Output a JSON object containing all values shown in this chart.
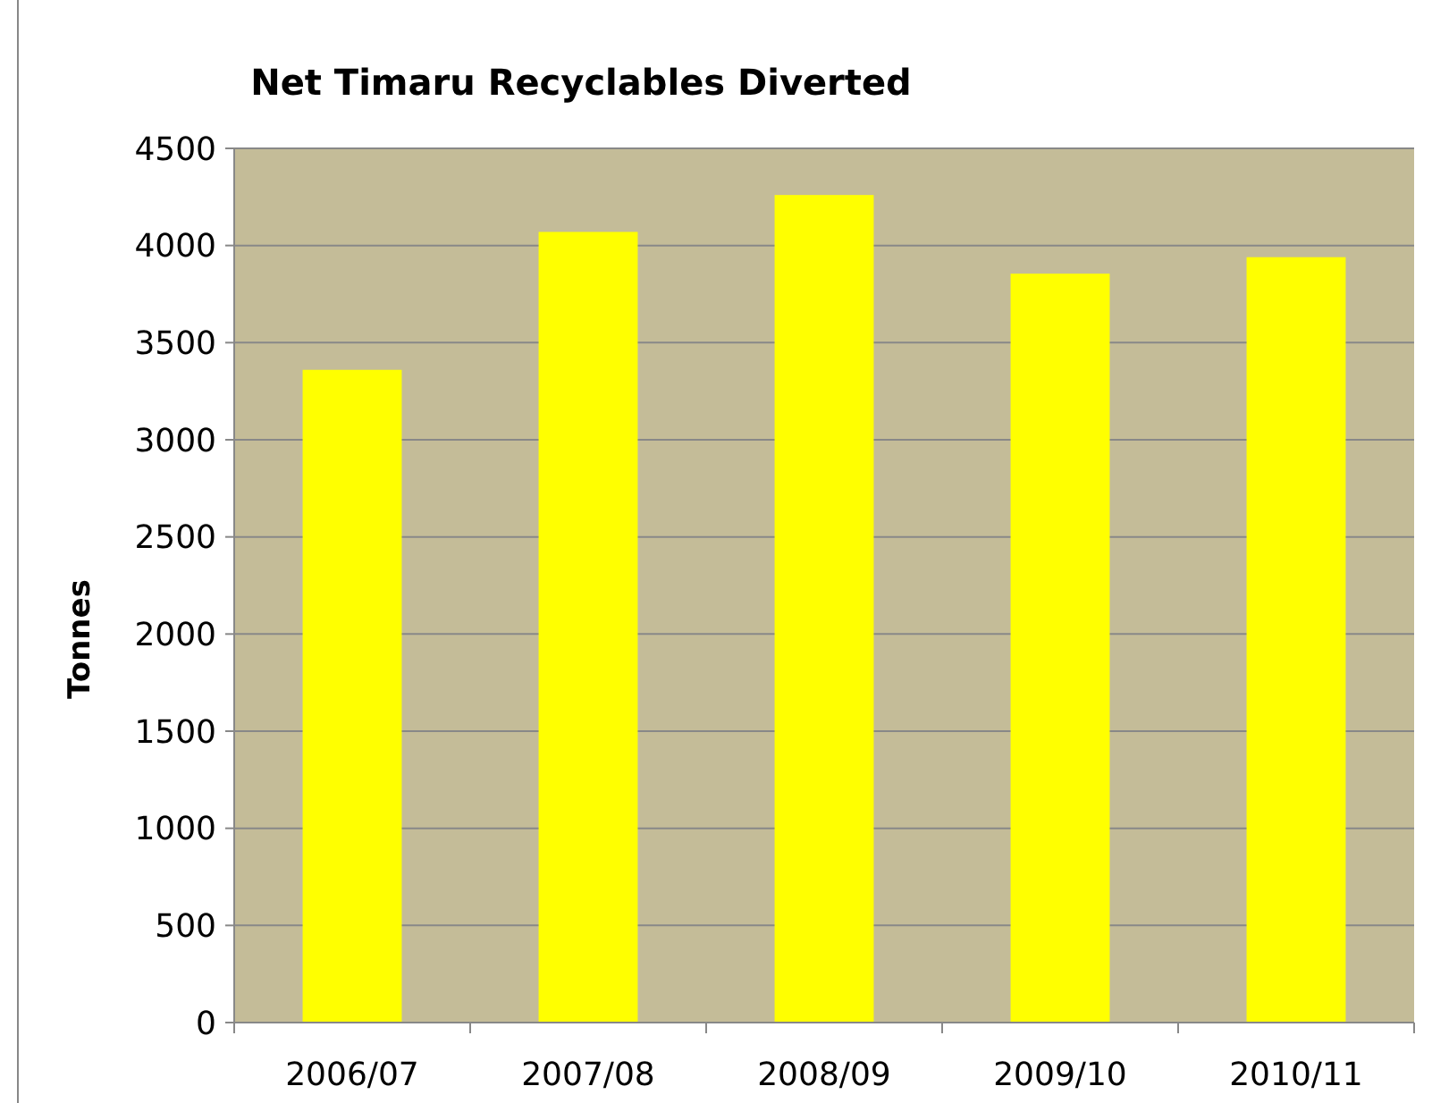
{
  "chart_data": {
    "type": "bar",
    "title": "Net Timaru Recyclables Diverted",
    "ylabel": "Tonnes",
    "categories": [
      "2006/07",
      "2007/08",
      "2008/09",
      "2009/10",
      "2010/11"
    ],
    "values": [
      3360,
      4070,
      4260,
      3855,
      3940
    ],
    "color": "#ffff00",
    "ylim": [
      0,
      4500
    ],
    "yticks": [
      0,
      500,
      1000,
      1500,
      2000,
      2500,
      3000,
      3500,
      4000,
      4500
    ],
    "grid": "y"
  }
}
